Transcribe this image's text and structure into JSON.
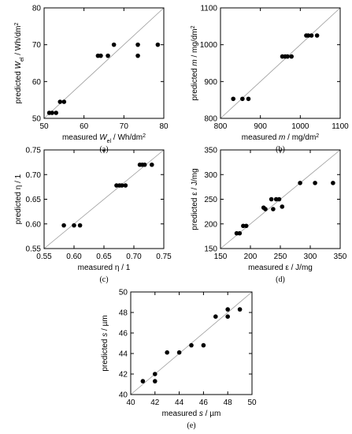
{
  "chart_data": [
    {
      "type": "scatter",
      "panel": "(a)",
      "xlabel": "measured W_el / Wh/dm²",
      "ylabel": "predicted W_el / Wh/dm²",
      "xlabel_parts": [
        "measured ",
        "W",
        "el",
        " / Wh/dm",
        "2"
      ],
      "ylabel_parts": [
        "predicted ",
        "W",
        "el",
        " / Wh/dm",
        "2"
      ],
      "xlim": [
        50,
        80
      ],
      "ylim": [
        50,
        80
      ],
      "xticks": [
        50,
        60,
        70,
        80
      ],
      "yticks": [
        50,
        60,
        70,
        80
      ],
      "diagonal": true,
      "x": [
        51.3,
        52.0,
        53.0,
        54.0,
        55.0,
        63.5,
        64.2,
        66.0,
        67.5,
        73.5,
        73.5,
        78.5
      ],
      "y": [
        51.5,
        51.5,
        51.5,
        54.5,
        54.5,
        67.0,
        67.0,
        67.0,
        70.0,
        70.0,
        67.0,
        70.0
      ]
    },
    {
      "type": "scatter",
      "panel": "(b)",
      "xlabel": "measured m / mg/dm²",
      "ylabel": "predicted m / mg/dm²",
      "xlabel_parts": [
        "measured ",
        "m",
        "",
        " / mg/dm",
        "2"
      ],
      "ylabel_parts": [
        "predicted ",
        "m",
        "",
        " / mg/dm",
        "2"
      ],
      "xlim": [
        800,
        1100
      ],
      "ylim": [
        800,
        1100
      ],
      "xticks": [
        800,
        900,
        1000,
        1100
      ],
      "yticks": [
        800,
        900,
        1000,
        1100
      ],
      "diagonal": true,
      "x": [
        832,
        855,
        870,
        955,
        962,
        968,
        978,
        1015,
        1020,
        1028,
        1042
      ],
      "y": [
        853,
        853,
        853,
        968,
        968,
        968,
        968,
        1025,
        1025,
        1025,
        1025
      ]
    },
    {
      "type": "scatter",
      "panel": "(c)",
      "xlabel": "measured η / 1",
      "ylabel": "predicted η / 1",
      "xlabel_parts": [
        "measured η / 1",
        "",
        "",
        "",
        ""
      ],
      "ylabel_parts": [
        "predicted η / 1",
        "",
        "",
        "",
        ""
      ],
      "xlim": [
        0.55,
        0.75
      ],
      "ylim": [
        0.55,
        0.75
      ],
      "xticks": [
        0.55,
        0.6,
        0.65,
        0.7,
        0.75
      ],
      "yticks": [
        0.55,
        0.6,
        0.65,
        0.7,
        0.75
      ],
      "diagonal": true,
      "x": [
        0.583,
        0.6,
        0.61,
        0.671,
        0.676,
        0.68,
        0.686,
        0.71,
        0.714,
        0.718,
        0.73
      ],
      "y": [
        0.597,
        0.597,
        0.597,
        0.678,
        0.678,
        0.678,
        0.678,
        0.72,
        0.72,
        0.72,
        0.72
      ]
    },
    {
      "type": "scatter",
      "panel": "(d)",
      "xlabel": "measured ε / J/mg",
      "ylabel": "predicted ε / J/mg",
      "xlabel_parts": [
        "measured ε / J/mg",
        "",
        "",
        "",
        ""
      ],
      "ylabel_parts": [
        "predicted ε / J/mg",
        "",
        "",
        "",
        ""
      ],
      "xlim": [
        150,
        350
      ],
      "ylim": [
        150,
        350
      ],
      "xticks": [
        150,
        200,
        250,
        300,
        350
      ],
      "yticks": [
        150,
        200,
        250,
        300,
        350
      ],
      "diagonal": true,
      "x": [
        177,
        182,
        188,
        193,
        222,
        225,
        235,
        238,
        243,
        248,
        253,
        283,
        308,
        338
      ],
      "y": [
        181,
        181,
        196,
        196,
        233,
        230,
        250,
        230,
        250,
        250,
        235,
        283,
        283,
        283
      ]
    },
    {
      "type": "scatter",
      "panel": "(e)",
      "xlabel": "measured s / µm",
      "ylabel": "predicted s / µm",
      "xlabel_parts": [
        "measured ",
        "s",
        "",
        " / µm",
        ""
      ],
      "ylabel_parts": [
        "predicted ",
        "s",
        "",
        " / µm",
        ""
      ],
      "xlim": [
        40,
        50
      ],
      "ylim": [
        40,
        50
      ],
      "xticks": [
        40,
        42,
        44,
        46,
        48,
        50
      ],
      "yticks": [
        40,
        42,
        44,
        46,
        48,
        50
      ],
      "diagonal": true,
      "x": [
        41.0,
        42.0,
        42.0,
        43.0,
        44.0,
        45.0,
        46.0,
        47.0,
        48.0,
        48.0,
        49.0
      ],
      "y": [
        41.3,
        42.0,
        41.3,
        44.1,
        44.1,
        44.8,
        44.8,
        47.6,
        48.3,
        47.6,
        48.3
      ]
    }
  ]
}
